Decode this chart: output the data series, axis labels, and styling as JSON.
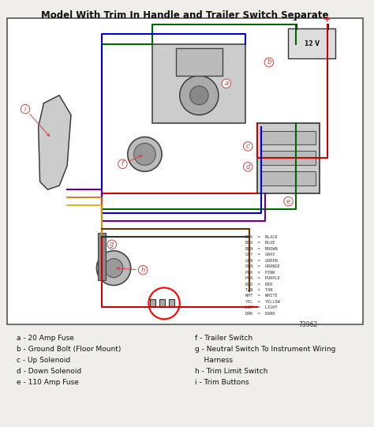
{
  "title": "Model With Trim In Handle and Trailer Switch Separate",
  "background_color": "#f0eeea",
  "border_color": "#555555",
  "legend_left": [
    "a - 20 Amp Fuse",
    "b - Ground Bolt (Floor Mount)",
    "c - Up Solenoid",
    "d - Down Solenoid",
    "e - 110 Amp Fuse"
  ],
  "legend_right": [
    "f - Trailer Switch",
    "g - Neutral Switch To Instrument Wiring",
    "    Harness",
    "h - Trim Limit Switch",
    "i - Trim Buttons"
  ],
  "color_legend": [
    [
      "BLK",
      "BLACK"
    ],
    [
      "BLU",
      "BLUE"
    ],
    [
      "BRN",
      "BROWN"
    ],
    [
      "GRY",
      "GRAY"
    ],
    [
      "GRN",
      "GREEN"
    ],
    [
      "ORN",
      "ORANGE"
    ],
    [
      "PNK",
      "PINK"
    ],
    [
      "PUR",
      "PURPLE"
    ],
    [
      "RED",
      "RED"
    ],
    [
      "TAN",
      "TAN"
    ],
    [
      "WHT",
      "WHITE"
    ],
    [
      "YEL",
      "YELLOW"
    ],
    [
      "LIT",
      "LIGHT"
    ],
    [
      "DRK",
      "DARK"
    ]
  ],
  "part_number": "73962",
  "wire_colors": {
    "red": "#cc0000",
    "blue": "#0000cc",
    "green": "#006600",
    "dark_green": "#004400",
    "purple": "#660099",
    "orange": "#cc6600",
    "yellow": "#ccaa00",
    "brown": "#663300",
    "black": "#111111",
    "tan": "#c8a87a",
    "gray": "#888888"
  }
}
